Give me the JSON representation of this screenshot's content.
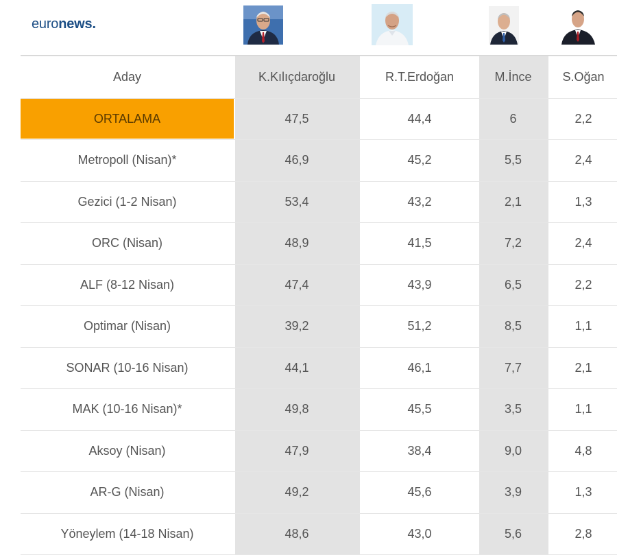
{
  "brand": {
    "logo_light": "euro",
    "logo_bold": "news",
    "logo_dot": "."
  },
  "colors": {
    "highlight": "#f9a000",
    "shaded_column": "#e3e3e3",
    "logo": "#1d4f86"
  },
  "chart_data": {
    "type": "table",
    "columns": [
      "Aday",
      "K.Kılıçdaroğlu",
      "R.T.Erdoğan",
      "M.İnce",
      "S.Oğan"
    ],
    "rows": [
      [
        "ORTALAMA",
        "47,5",
        "44,4",
        "6",
        "2,2"
      ],
      [
        "Metropoll (Nisan)*",
        "46,9",
        "45,2",
        "5,5",
        "2,4"
      ],
      [
        "Gezici (1-2 Nisan)",
        "53,4",
        "43,2",
        "2,1",
        "1,3"
      ],
      [
        "ORC (Nisan)",
        "48,9",
        "41,5",
        "7,2",
        "2,4"
      ],
      [
        "ALF (8-12 Nisan)",
        "47,4",
        "43,9",
        "6,5",
        "2,2"
      ],
      [
        "Optimar (Nisan)",
        "39,2",
        "51,2",
        "8,5",
        "1,1"
      ],
      [
        "SONAR (10-16 Nisan)",
        "44,1",
        "46,1",
        "7,7",
        "2,1"
      ],
      [
        "MAK (10-16 Nisan)*",
        "49,8",
        "45,5",
        "3,5",
        "1,1"
      ],
      [
        "Aksoy (Nisan)",
        "47,9",
        "38,4",
        "9,0",
        "4,8"
      ],
      [
        "AR-G (Nisan)",
        "49,2",
        "45,6",
        "3,9",
        "1,3"
      ],
      [
        "Yöneylem (14-18 Nisan)",
        "48,6",
        "43,0",
        "5,6",
        "2,8"
      ]
    ],
    "highlighted_row": "ORTALAMA",
    "shaded_columns": [
      "K.Kılıçdaroğlu",
      "M.İnce"
    ]
  }
}
